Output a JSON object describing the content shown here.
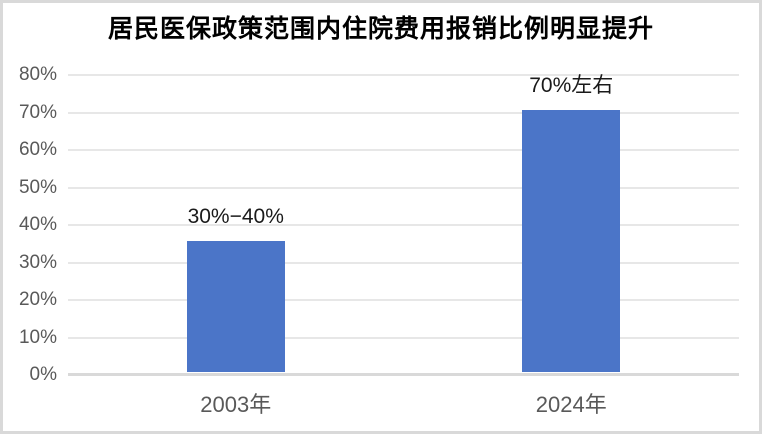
{
  "chart_data": {
    "type": "bar",
    "title": "居民医保政策范围内住院费用报销比例明显提升",
    "categories": [
      "2003年",
      "2024年"
    ],
    "values": [
      35,
      70
    ],
    "data_labels": [
      "30%−40%",
      "70%左右"
    ],
    "xlabel": "",
    "ylabel": "",
    "ylim": [
      0,
      80
    ],
    "yticks": [
      0,
      10,
      20,
      30,
      40,
      50,
      60,
      70,
      80
    ],
    "ytick_labels": [
      "0%",
      "10%",
      "20%",
      "30%",
      "40%",
      "50%",
      "60%",
      "70%",
      "80%"
    ],
    "grid": true,
    "legend": false,
    "colors": {
      "bar": "#4B75C8",
      "grid_line": "#e7e7e7",
      "axis_line": "#d9d9d9",
      "axis_text": "#595959",
      "data_label_text": "#1a1a1a",
      "title_text": "#000000",
      "frame_border": "#d9d9d9",
      "background": "#ffffff"
    }
  }
}
